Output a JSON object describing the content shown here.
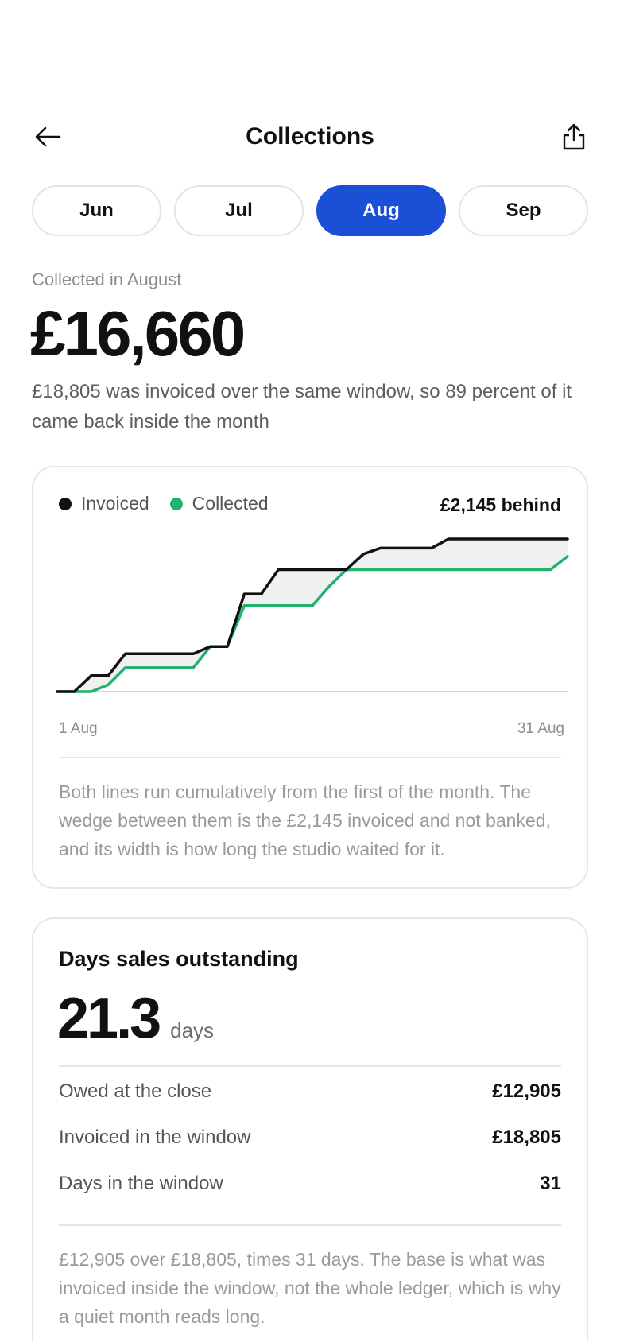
{
  "header": {
    "title": "Collections",
    "back_icon": "arrow-left-icon",
    "share_icon": "share-icon"
  },
  "tabs": [
    {
      "label": "Jun",
      "active": false
    },
    {
      "label": "Jul",
      "active": false
    },
    {
      "label": "Aug",
      "active": true
    },
    {
      "label": "Sep",
      "active": false
    }
  ],
  "summary": {
    "label": "Collected in August",
    "amount": "£16,660",
    "note": "£18,805 was invoiced over the same window, so 89 percent of it came back inside the month"
  },
  "colors": {
    "accent": "#1a4fd6",
    "invoiced": "#111111",
    "collected": "#1fb36b",
    "gap_fill": "#f0f0f0"
  },
  "chart_card": {
    "legend": [
      {
        "label": "Invoiced",
        "color": "#111111"
      },
      {
        "label": "Collected",
        "color": "#1fb36b"
      }
    ],
    "behind_label": "£2,145 behind",
    "axis_start": "1 Aug",
    "axis_end": "31 Aug",
    "note": "Both lines run cumulatively from the first of the month. The wedge between them is the £2,145 invoiced and not banked, and its width is how long the studio waited for it."
  },
  "chart_data": {
    "type": "line",
    "x": [
      1,
      2,
      3,
      4,
      5,
      6,
      7,
      8,
      9,
      10,
      11,
      12,
      13,
      14,
      15,
      16,
      17,
      18,
      19,
      20,
      21,
      22,
      23,
      24,
      25,
      26,
      27,
      28,
      29,
      30,
      31
    ],
    "xlabel": "",
    "ylabel": "",
    "ylim": [
      0,
      18805
    ],
    "series": [
      {
        "name": "Invoiced",
        "values": [
          0,
          0,
          1980,
          1980,
          4670,
          4670,
          4670,
          4670,
          4670,
          5560,
          5560,
          12040,
          12040,
          15030,
          15030,
          15030,
          15030,
          15030,
          16950,
          17690,
          17690,
          17690,
          17690,
          18805,
          18805,
          18805,
          18805,
          18805,
          18805,
          18805,
          18805
        ]
      },
      {
        "name": "Collected",
        "values": [
          0,
          0,
          0,
          860,
          2950,
          2950,
          2950,
          2950,
          2950,
          5560,
          5560,
          10600,
          10600,
          10600,
          10600,
          10600,
          13000,
          15030,
          15030,
          15030,
          15030,
          15030,
          15030,
          15030,
          15030,
          15030,
          15030,
          15030,
          15030,
          15030,
          16660
        ]
      }
    ],
    "grid": false,
    "legend_position": "top-left"
  },
  "dso_card": {
    "title": "Days sales outstanding",
    "value": "21.3",
    "unit": "days",
    "metrics": [
      {
        "label": "Owed at the close",
        "value": "£12,905"
      },
      {
        "label": "Invoiced in the window",
        "value": "£18,805"
      },
      {
        "label": "Days in the window",
        "value": "31"
      }
    ],
    "note": "£12,905 over £18,805, times 31 days. The base is what was invoiced inside the window, not the whole ledger, which is why a quiet month reads long."
  }
}
